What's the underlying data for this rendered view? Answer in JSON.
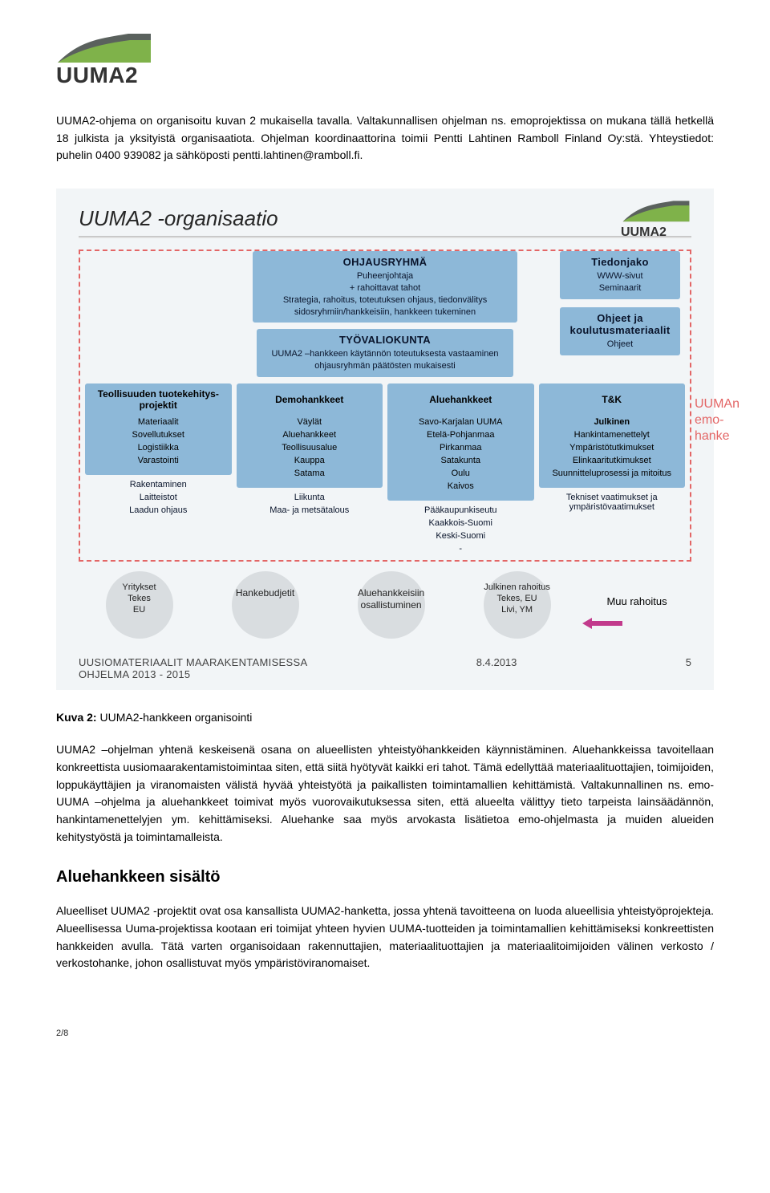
{
  "logo": {
    "text": "UUMA2"
  },
  "intro_paragraph": "UUMA2-ohjema on organisoitu kuvan 2 mukaisella tavalla. Valtakunnallisen ohjelman ns. emoprojektissa on mukana tällä hetkellä 18 julkista ja yksityistä organisaatiota. Ohjelman koordinaattorina toimii Pentti Lahtinen Ramboll Finland Oy:stä. Yhteystiedot: puhelin 0400 939082 ja sähköposti pentti.lahtinen@ramboll.fi.",
  "diagram": {
    "title": "UUMA2 -organisaatio",
    "steering": {
      "heading": "OHJAUSRYHMÄ",
      "lines": [
        "Puheenjohtaja",
        "+ rahoittavat tahot",
        "Strategia, rahoitus, toteutuksen ohjaus, tiedonvälitys sidosryhmiin/hankkeisiin, hankkeen tukeminen"
      ]
    },
    "info_share": {
      "heading": "Tiedonjako",
      "lines": [
        "WWW-sivut",
        "Seminaarit"
      ]
    },
    "guides": {
      "heading": "Ohjeet ja koulutusmateriaalit",
      "lines": [
        "Ohjeet"
      ]
    },
    "workgroup": {
      "heading": "TYÖVALIOKUNTA",
      "lines": [
        "UUMA2 –hankkeen käytännön toteutuksesta vastaaminen ohjausryhmän päätösten mukaisesti"
      ]
    },
    "columns": [
      {
        "heading": "Teollisuuden tuotekehitys-projektit",
        "inside": [
          "Materiaalit",
          "Sovellutukset",
          "Logistiikka",
          "Varastointi"
        ],
        "outside": [
          "Rakentaminen",
          "Laitteistot",
          "Laadun ohjaus"
        ]
      },
      {
        "heading": "Demohankkeet",
        "inside": [
          "Väylät",
          "Aluehankkeet",
          "Teollisuusalue",
          "Kauppa",
          "Satama"
        ],
        "outside": [
          "Liikunta",
          "Maa- ja metsätalous"
        ]
      },
      {
        "heading": "Aluehankkeet",
        "inside": [
          "Savo-Karjalan UUMA",
          "Etelä-Pohjanmaa",
          "Pirkanmaa",
          "Satakunta",
          "Oulu"
        ],
        "outside": [
          "Pääkaupunkiseutu",
          "Kaakkois-Suomi",
          "Keski-Suomi",
          "-"
        ],
        "outside_in_box_last": "Kaivos"
      },
      {
        "heading": "T&K",
        "sub": "Julkinen",
        "inside": [
          "Hankintamenettelyt",
          "Ympäristötutkimukset",
          "Elinkaaritutkimukset",
          "Suunnitteluprosessi ja mitoitus"
        ],
        "outside": [
          "Tekniset vaatimukset ja ympäristövaatimukset"
        ]
      }
    ],
    "side_label": [
      "UUMAn",
      "emo-",
      "hanke"
    ],
    "funding": [
      {
        "label": "Yritykset\nTekes\nEU"
      },
      {
        "label": "Hankebudjetit"
      },
      {
        "label": "Aluehankkeisiin\nosallistuminen"
      },
      {
        "label": "Julkinen rahoitus\nTekes, EU\nLivi, YM"
      },
      {
        "label": "Muu rahoitus",
        "plain": true
      }
    ],
    "footer": {
      "left": "UUSIOMATERIAALIT MAARAKENTAMISESSA\nOHJELMA 2013 - 2015",
      "date": "8.4.2013",
      "page": "5"
    }
  },
  "caption": {
    "strong": "Kuva 2:",
    "rest": " UUMA2-hankkeen organisointi"
  },
  "para2": "UUMA2 –ohjelman yhtenä keskeisenä osana on alueellisten yhteistyöhankkeiden käynnistäminen. Aluehankkeissa tavoitellaan konkreettista uusiomaarakentamistoimintaa siten, että siitä hyötyvät kaikki eri tahot. Tämä edellyttää materiaalituottajien, toimijoiden, loppukäyttäjien ja viranomaisten välistä hyvää yhteistyötä ja paikallisten toimintamallien kehittämistä. Valtakunnallinen ns. emo-UUMA –ohjelma ja aluehankkeet toimivat myös vuorovaikutuksessa siten, että alueelta välittyy tieto tarpeista lainsäädännön, hankintamenettelyjen ym. kehittämiseksi. Aluehanke saa myös arvokasta lisätietoa emo-ohjelmasta ja muiden alueiden kehitystyöstä ja toimintamalleista.",
  "section_heading": "Aluehankkeen sisältö",
  "para3": "Alueelliset UUMA2 -projektit ovat osa kansallista UUMA2-hanketta, jossa yhtenä tavoitteena on luoda alueellisia yhteistyöprojekteja. Alueellisessa Uuma-projektissa kootaan eri toimijat yhteen hyvien UUMA-tuotteiden ja toimintamallien kehittämiseksi konkreettisten hankkeiden avulla. Tätä varten organisoidaan rakennuttajien, materiaalituottajien ja materiaalitoimijoiden välinen verkosto / verkostohanke, johon osallistuvat myös ympäristöviranomaiset.",
  "page_number": "2/8",
  "colors": {
    "box_bg": "#8db8d8",
    "dashed": "#e36666",
    "circle": "#d9dde0",
    "diag_bg": "#f2f5f7",
    "arrow": "#c23a8c"
  }
}
